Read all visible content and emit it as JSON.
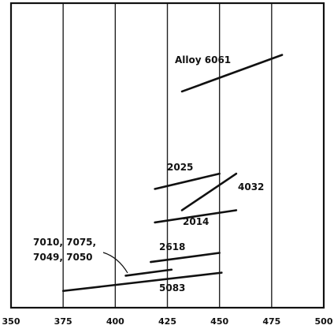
{
  "chart_data": {
    "type": "line",
    "title": "",
    "xlabel": "",
    "ylabel": "",
    "xlim": [
      350,
      500
    ],
    "x_ticks": [
      350,
      375,
      400,
      425,
      450,
      475,
      500
    ],
    "x_tick_labels": [
      "350",
      "375",
      "400",
      "425",
      "450",
      "475",
      "500"
    ],
    "ylim": [
      0,
      10
    ],
    "grid": "vertical",
    "series": [
      {
        "name": "Alloy 6061",
        "points": [
          [
            432,
            7.1
          ],
          [
            480,
            8.3
          ]
        ]
      },
      {
        "name": "2025",
        "points": [
          [
            419,
            3.9
          ],
          [
            450,
            4.4
          ]
        ]
      },
      {
        "name": "4032",
        "points": [
          [
            432,
            3.2
          ],
          [
            458,
            4.4
          ]
        ]
      },
      {
        "name": "2014",
        "points": [
          [
            419,
            2.8
          ],
          [
            458,
            3.2
          ]
        ]
      },
      {
        "name": "2618",
        "points": [
          [
            417,
            1.5
          ],
          [
            450,
            1.8
          ]
        ]
      },
      {
        "name": "7010, 7075, 7049, 7050",
        "points": [
          [
            405,
            1.05
          ],
          [
            427,
            1.25
          ]
        ]
      },
      {
        "name": "5083",
        "points": [
          [
            375,
            0.55
          ],
          [
            451,
            1.15
          ]
        ]
      }
    ]
  }
}
